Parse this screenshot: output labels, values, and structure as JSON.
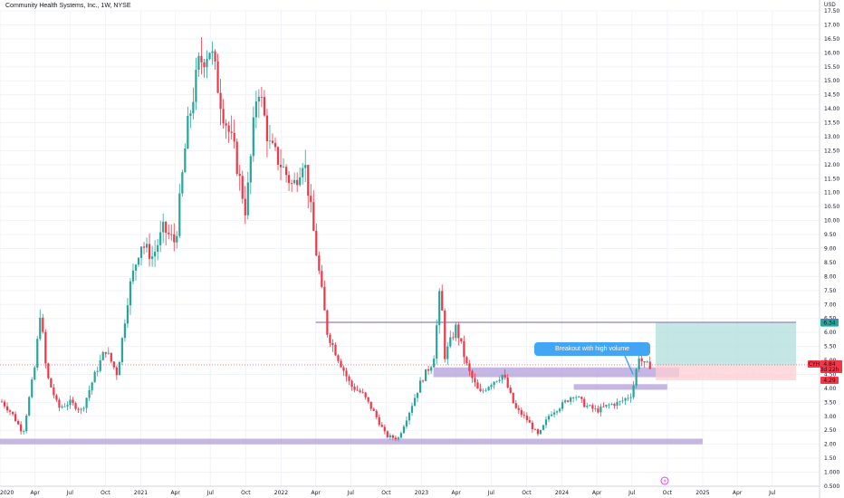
{
  "header": {
    "title": "Community Health Systems, Inc., 1W, NYSE",
    "currency": "USD"
  },
  "colors": {
    "up": "#26a69a",
    "down": "#f23645",
    "zone": "#b39ddb",
    "level": "#7b61a8",
    "target": "#b2dfdb",
    "stop": "#ffcdd2",
    "callout": "#42a5f5",
    "grid": "#f0f3fa"
  },
  "icons": {
    "flash": "lightning-icon"
  },
  "chart_data": {
    "type": "candlestick",
    "title": "Community Health Systems, Inc., 1W, NYSE",
    "ylabel": "USD",
    "ylim": [
      0.5,
      17.5
    ],
    "x_ticks": [
      "2020",
      "Apr",
      "Jul",
      "Oct",
      "2021",
      "Apr",
      "Jul",
      "Oct",
      "2022",
      "Apr",
      "Jul",
      "Oct",
      "2023",
      "Apr",
      "Jul",
      "Oct",
      "2024",
      "Apr",
      "Jul",
      "Oct",
      "2025",
      "Apr",
      "Jul"
    ],
    "y_ticks": [
      "17.50",
      "17.00",
      "16.50",
      "16.00",
      "15.50",
      "15.00",
      "14.50",
      "14.00",
      "13.50",
      "13.00",
      "12.50",
      "12.00",
      "11.50",
      "11.00",
      "10.50",
      "10.00",
      "9.50",
      "9.00",
      "8.50",
      "8.00",
      "7.50",
      "7.00",
      "6.50",
      "6.00",
      "5.50",
      "5.00",
      "4.50",
      "4.00",
      "3.50",
      "3.00",
      "2.50",
      "2.00",
      "1.50",
      "1.000",
      "0.500"
    ],
    "last_price": "4.84",
    "countdown": "3d 22h",
    "ticker": "CYH",
    "price_tags": [
      {
        "value": 6.36,
        "label": "6.36",
        "kind": "level"
      },
      {
        "value": 6.34,
        "label": "6.34",
        "kind": "target"
      },
      {
        "value": 4.88,
        "label": "4.88",
        "kind": "neutral"
      },
      {
        "value": 4.29,
        "label": "4.29",
        "kind": "stop"
      }
    ],
    "anchors": [
      [
        "2020-01",
        3.6
      ],
      [
        "2020-02",
        3.1
      ],
      [
        "2020-03",
        2.4
      ],
      [
        "2020-03-20",
        3.9
      ],
      [
        "2020-04",
        4.8
      ],
      [
        "2020-04-15",
        6.8
      ],
      [
        "2020-05",
        4.5
      ],
      [
        "2020-06",
        3.3
      ],
      [
        "2020-07",
        3.5
      ],
      [
        "2020-08",
        3.2
      ],
      [
        "2020-09",
        4.4
      ],
      [
        "2020-10",
        5.4
      ],
      [
        "2020-11",
        4.5
      ],
      [
        "2020-12",
        7.5
      ],
      [
        "2021-01",
        9.2
      ],
      [
        "2021-02",
        8.7
      ],
      [
        "2021-03",
        9.7
      ],
      [
        "2021-04",
        9.2
      ],
      [
        "2021-05",
        13.2
      ],
      [
        "2021-06",
        15.6
      ],
      [
        "2021-07",
        16.2
      ],
      [
        "2021-08",
        14.0
      ],
      [
        "2021-09",
        12.5
      ],
      [
        "2021-10",
        10.3
      ],
      [
        "2021-11",
        15.0
      ],
      [
        "2021-12",
        12.7
      ],
      [
        "2022-01",
        12.0
      ],
      [
        "2022-02",
        11.2
      ],
      [
        "2022-03",
        12.3
      ],
      [
        "2022-04",
        9.0
      ],
      [
        "2022-05",
        6.0
      ],
      [
        "2022-06",
        5.0
      ],
      [
        "2022-07",
        4.1
      ],
      [
        "2022-08",
        3.8
      ],
      [
        "2022-09",
        3.1
      ],
      [
        "2022-10",
        2.3
      ],
      [
        "2022-11",
        2.2
      ],
      [
        "2022-12",
        3.2
      ],
      [
        "2023-01",
        4.3
      ],
      [
        "2023-02",
        5.0
      ],
      [
        "2023-02-20",
        7.8
      ],
      [
        "2023-03",
        5.1
      ],
      [
        "2023-04",
        6.2
      ],
      [
        "2023-05",
        4.7
      ],
      [
        "2023-06",
        3.8
      ],
      [
        "2023-07",
        4.2
      ],
      [
        "2023-08",
        4.5
      ],
      [
        "2023-09",
        3.3
      ],
      [
        "2023-10",
        2.9
      ],
      [
        "2023-11",
        2.3
      ],
      [
        "2023-12",
        3.1
      ],
      [
        "2024-01",
        3.4
      ],
      [
        "2024-02",
        3.8
      ],
      [
        "2024-03",
        3.4
      ],
      [
        "2024-04",
        3.2
      ],
      [
        "2024-05",
        3.4
      ],
      [
        "2024-06",
        3.5
      ],
      [
        "2024-07",
        3.8
      ],
      [
        "2024-07-20",
        5.2
      ],
      [
        "2024-08",
        4.8
      ],
      [
        "2024-08-20",
        4.84
      ]
    ],
    "zones": [
      {
        "name": "support-zone-bottom",
        "from": "2020-01",
        "to": "2025-01",
        "low": 2.0,
        "high": 2.2
      },
      {
        "name": "resistance-zone-mid",
        "from": "2023-02",
        "to": "2024-11",
        "low": 4.4,
        "high": 4.75
      },
      {
        "name": "support-zone-recent",
        "from": "2024-02",
        "to": "2024-10",
        "low": 3.95,
        "high": 4.15
      }
    ],
    "levels": [
      {
        "name": "level-line",
        "from": "2022-04",
        "to": "2025-09",
        "value": 6.36
      }
    ],
    "position": {
      "from": "2024-09",
      "to": "2025-09",
      "entry": 4.84,
      "target": 6.34,
      "stop": 4.29
    },
    "annotations": [
      {
        "text": "Breakout with high volume",
        "date": "2024-06",
        "value": 5.0
      }
    ]
  }
}
